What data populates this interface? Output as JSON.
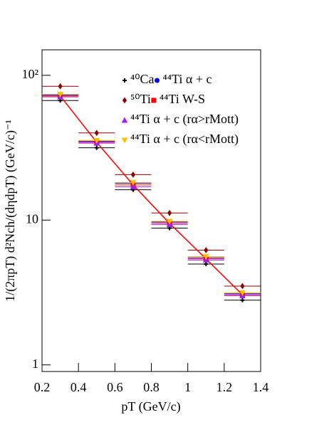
{
  "chart_data": {
    "type": "scatter",
    "xlabel": "pT (GeV/c)",
    "ylabel": "1/(2πpT) d²Nch/(dηdpT) (GeV/c)⁻¹",
    "x": [
      0.3,
      0.5,
      0.7,
      0.9,
      1.1,
      1.3
    ],
    "xerr": 0.1,
    "xlim": [
      0.2,
      1.4
    ],
    "xticks": [
      0.2,
      0.4,
      0.6,
      0.8,
      1,
      1.2,
      1.4
    ],
    "ylim": [
      0.9,
      150
    ],
    "yticks": [
      1,
      10,
      {
        "value": 100,
        "label": "10²"
      }
    ],
    "log_y": true,
    "legend": "upper right",
    "series": [
      {
        "name": "⁴⁰Ca",
        "color": "#000000",
        "marker": "plus",
        "values": [
          67,
          31.6,
          16.2,
          8.8,
          4.97,
          2.8
        ]
      },
      {
        "name": "⁴⁴Ti α + c",
        "color": "#0000ff",
        "marker": "circle",
        "values": [
          73,
          35,
          18,
          9.7,
          5.5,
          3.1
        ]
      },
      {
        "name": "⁵⁰Ti",
        "color": "#8b0000",
        "marker": "diamond",
        "values": [
          84,
          40,
          20.6,
          11.2,
          6.2,
          3.5
        ]
      },
      {
        "name": "⁴⁴Ti W-S",
        "color": "#ff0000",
        "marker": "square",
        "line": true,
        "values": [
          72,
          34.5,
          17.5,
          9.5,
          5.4,
          3.05
        ]
      },
      {
        "name": "⁴⁴Ti α + c (rα>rMott)",
        "color": "#a020f0",
        "marker": "triangle-up",
        "values": [
          71,
          34,
          17,
          9.3,
          5.3,
          3.0
        ]
      },
      {
        "name": "⁴⁴Ti α + c (rα<rMott)",
        "color": "#ffc000",
        "marker": "triangle-down",
        "values": [
          74,
          35.5,
          18.2,
          9.8,
          5.6,
          3.15
        ]
      }
    ]
  }
}
